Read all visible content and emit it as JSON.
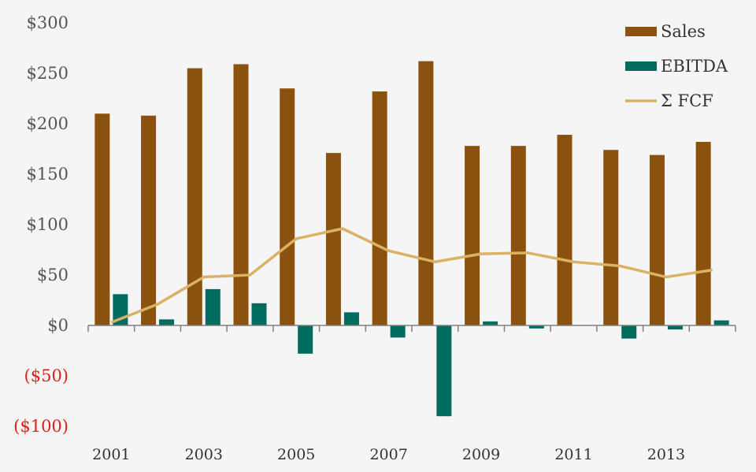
{
  "chart_data": {
    "type": "bar",
    "title": "",
    "xlabel": "",
    "ylabel": "",
    "ylim": [
      -100,
      300
    ],
    "yticks": [
      {
        "value": 300,
        "label": "$300"
      },
      {
        "value": 250,
        "label": "$250"
      },
      {
        "value": 200,
        "label": "$200"
      },
      {
        "value": 150,
        "label": "$150"
      },
      {
        "value": 100,
        "label": "$100"
      },
      {
        "value": 50,
        "label": "$50"
      },
      {
        "value": 0,
        "label": "$0"
      },
      {
        "value": -50,
        "label": "($50)"
      },
      {
        "value": -100,
        "label": "($100)"
      }
    ],
    "categories": [
      "2001",
      "2002",
      "2003",
      "2004",
      "2005",
      "2006",
      "2007",
      "2008",
      "2009",
      "2010",
      "2011",
      "2012",
      "2013",
      "2014"
    ],
    "xtick_labels": [
      "2001",
      "",
      "2003",
      "",
      "2005",
      "",
      "2007",
      "",
      "2009",
      "",
      "2011",
      "",
      "2013",
      ""
    ],
    "series": [
      {
        "name": "Sales",
        "type": "bar",
        "color": "#8b510e",
        "values": [
          210,
          208,
          255,
          259,
          235,
          171,
          232,
          262,
          178,
          178,
          189,
          174,
          169,
          182
        ]
      },
      {
        "name": "EBITDA",
        "type": "bar",
        "color": "#006b5f",
        "values": [
          31,
          6,
          36,
          22,
          -28,
          13,
          -12,
          -90,
          4,
          -3,
          0,
          -13,
          -4,
          5
        ]
      },
      {
        "name": "Σ FCF",
        "type": "line",
        "color": "#d9b263",
        "values": [
          3,
          21,
          48,
          50,
          86,
          96,
          74,
          63,
          71,
          72,
          63,
          59,
          48,
          55
        ]
      }
    ],
    "legend_position": "top-right",
    "grid": false
  }
}
